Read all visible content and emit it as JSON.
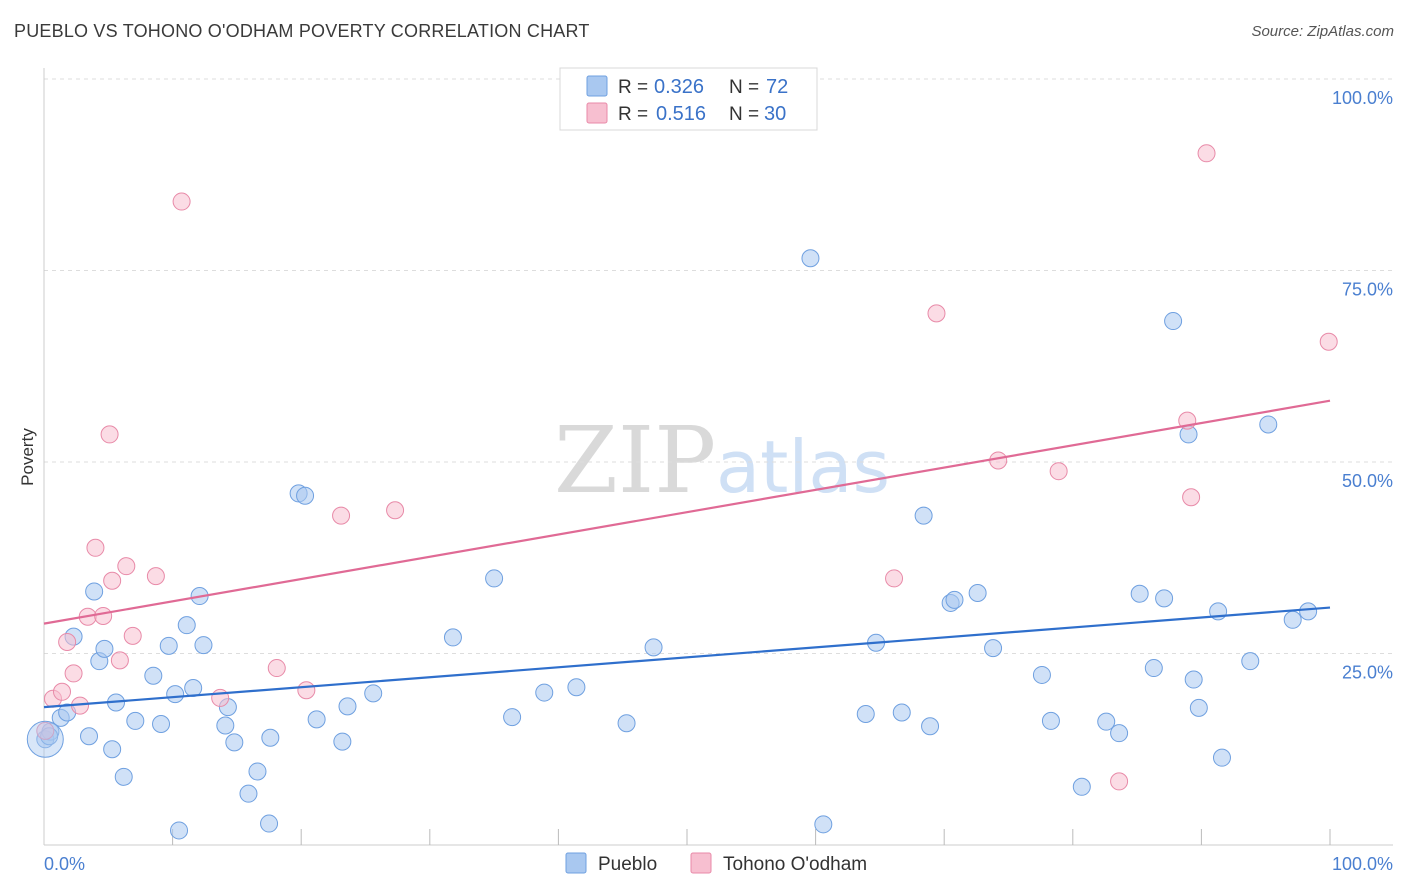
{
  "header": {
    "title": "PUEBLO VS TOHONO O'ODHAM POVERTY CORRELATION CHART",
    "source": "Source: ZipAtlas.com"
  },
  "watermark": {
    "zip": "ZIP",
    "atlas": "atlas"
  },
  "legend": {
    "r_label": "R = ",
    "n_label": "N = ",
    "entries": [
      {
        "name": "Pueblo",
        "r": "0.326",
        "n": "72",
        "color": "#a9c8f0",
        "stroke": "#6fa0e0"
      },
      {
        "name": "Tohono O'odham",
        "r": "0.516",
        "n": "30",
        "color": "#f7bfd0",
        "stroke": "#e88aa8"
      }
    ]
  },
  "chart_data": {
    "type": "scatter",
    "title": "PUEBLO VS TOHONO O'ODHAM POVERTY CORRELATION CHART",
    "xlabel": "",
    "ylabel": "Poverty",
    "xlim": [
      0,
      100
    ],
    "ylim": [
      0,
      100
    ],
    "x_tick_labels": [
      {
        "value": 0,
        "label": "0.0%"
      },
      {
        "value": 100,
        "label": "100.0%"
      }
    ],
    "y_tick_labels": [
      {
        "value": 25,
        "label": "25.0%"
      },
      {
        "value": 50,
        "label": "50.0%"
      },
      {
        "value": 75,
        "label": "75.0%"
      },
      {
        "value": 100,
        "label": "100.0%"
      }
    ],
    "x_minor_ticks": [
      10,
      20,
      30,
      40,
      50,
      60,
      70,
      80,
      90,
      100
    ],
    "series": [
      {
        "name": "Pueblo",
        "color": "#a9c8f0",
        "stroke": "#6fa0e0",
        "trend": {
          "x": [
            0,
            100
          ],
          "y": [
            18.0,
            31.0
          ],
          "color": "#2f6fcc"
        },
        "points": [
          [
            0.1,
            13.8
          ],
          [
            0.5,
            14.8
          ],
          [
            1.3,
            16.6
          ],
          [
            1.8,
            17.3
          ],
          [
            2.3,
            27.2
          ],
          [
            3.5,
            14.2
          ],
          [
            3.9,
            33.1
          ],
          [
            4.3,
            24.0
          ],
          [
            4.7,
            25.6
          ],
          [
            5.3,
            12.5
          ],
          [
            5.6,
            18.6
          ],
          [
            6.2,
            8.9
          ],
          [
            7.1,
            16.2
          ],
          [
            8.5,
            22.1
          ],
          [
            9.1,
            15.8
          ],
          [
            9.7,
            26.0
          ],
          [
            10.2,
            19.7
          ],
          [
            10.5,
            1.9
          ],
          [
            11.1,
            28.7
          ],
          [
            11.6,
            20.5
          ],
          [
            12.1,
            32.5
          ],
          [
            12.4,
            26.1
          ],
          [
            14.1,
            15.6
          ],
          [
            14.3,
            18.0
          ],
          [
            14.8,
            13.4
          ],
          [
            15.9,
            6.7
          ],
          [
            16.6,
            9.6
          ],
          [
            17.5,
            2.8
          ],
          [
            17.6,
            14.0
          ],
          [
            19.8,
            45.9
          ],
          [
            20.3,
            45.6
          ],
          [
            21.2,
            16.4
          ],
          [
            23.2,
            13.5
          ],
          [
            23.6,
            18.1
          ],
          [
            25.6,
            19.8
          ],
          [
            31.8,
            27.1
          ],
          [
            35.0,
            34.8
          ],
          [
            36.4,
            16.7
          ],
          [
            38.9,
            19.9
          ],
          [
            41.4,
            20.6
          ],
          [
            45.3,
            15.9
          ],
          [
            47.4,
            25.8
          ],
          [
            59.6,
            76.6
          ],
          [
            60.6,
            2.7
          ],
          [
            63.9,
            17.1
          ],
          [
            64.7,
            26.4
          ],
          [
            66.7,
            17.3
          ],
          [
            68.4,
            43.0
          ],
          [
            68.9,
            15.5
          ],
          [
            70.5,
            31.6
          ],
          [
            70.8,
            32.0
          ],
          [
            72.6,
            32.9
          ],
          [
            73.8,
            25.7
          ],
          [
            77.6,
            22.2
          ],
          [
            78.3,
            16.2
          ],
          [
            80.7,
            7.6
          ],
          [
            82.6,
            16.1
          ],
          [
            83.6,
            14.6
          ],
          [
            85.2,
            32.8
          ],
          [
            86.3,
            23.1
          ],
          [
            87.1,
            32.2
          ],
          [
            87.8,
            68.4
          ],
          [
            89.0,
            53.6
          ],
          [
            89.4,
            21.6
          ],
          [
            89.8,
            17.9
          ],
          [
            91.3,
            30.5
          ],
          [
            91.6,
            11.4
          ],
          [
            93.8,
            24.0
          ],
          [
            95.2,
            54.9
          ],
          [
            97.1,
            29.4
          ],
          [
            98.3,
            30.5
          ],
          [
            0.4,
            14.2
          ]
        ]
      },
      {
        "name": "Tohono O'odham",
        "color": "#f7bfd0",
        "stroke": "#e88aa8",
        "trend": {
          "x": [
            0,
            100
          ],
          "y": [
            28.9,
            58.0
          ],
          "color": "#e06a95"
        },
        "points": [
          [
            0.1,
            14.9
          ],
          [
            0.7,
            19.1
          ],
          [
            1.4,
            20.0
          ],
          [
            1.8,
            26.5
          ],
          [
            2.3,
            22.4
          ],
          [
            2.8,
            18.2
          ],
          [
            3.4,
            29.8
          ],
          [
            4.0,
            38.8
          ],
          [
            4.6,
            29.9
          ],
          [
            5.1,
            53.6
          ],
          [
            5.3,
            34.5
          ],
          [
            5.9,
            24.1
          ],
          [
            6.4,
            36.4
          ],
          [
            6.9,
            27.3
          ],
          [
            8.7,
            35.1
          ],
          [
            10.7,
            84.0
          ],
          [
            13.7,
            19.2
          ],
          [
            18.1,
            23.1
          ],
          [
            20.4,
            20.2
          ],
          [
            23.1,
            43.0
          ],
          [
            27.3,
            43.7
          ],
          [
            66.1,
            34.8
          ],
          [
            69.4,
            69.4
          ],
          [
            74.2,
            50.2
          ],
          [
            78.9,
            48.8
          ],
          [
            83.6,
            8.3
          ],
          [
            88.9,
            55.4
          ],
          [
            89.2,
            45.4
          ],
          [
            90.4,
            90.3
          ],
          [
            99.9,
            65.7
          ]
        ]
      }
    ]
  }
}
